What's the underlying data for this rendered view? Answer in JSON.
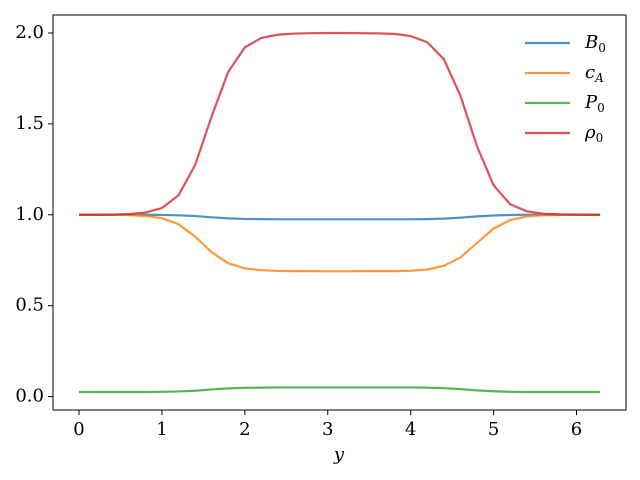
{
  "chart_data": {
    "type": "line",
    "xlabel": "y",
    "x": [
      0,
      0.2,
      0.4,
      0.6,
      0.8,
      1.0,
      1.2,
      1.4,
      1.6,
      1.8,
      2.0,
      2.2,
      2.4,
      2.6,
      2.8,
      3.0,
      3.2,
      3.4,
      3.6,
      3.8,
      4.0,
      4.2,
      4.4,
      4.6,
      4.8,
      5.0,
      5.2,
      5.4,
      5.6,
      5.8,
      6.0,
      6.2,
      6.283
    ],
    "series": [
      {
        "name": "B0",
        "color": "#1f77b4",
        "values": [
          1.0,
          1.0,
          1.0,
          1.0,
          1.0,
          0.999,
          0.997,
          0.993,
          0.986,
          0.98,
          0.977,
          0.976,
          0.975,
          0.975,
          0.975,
          0.975,
          0.975,
          0.975,
          0.975,
          0.975,
          0.975,
          0.976,
          0.979,
          0.984,
          0.991,
          0.996,
          0.999,
          1.0,
          1.0,
          1.0,
          1.0,
          1.0,
          1.0
        ]
      },
      {
        "name": "cA",
        "color": "#ff7f0e",
        "values": [
          1.0,
          1.0,
          1.0,
          0.998,
          0.994,
          0.981,
          0.948,
          0.88,
          0.794,
          0.733,
          0.705,
          0.695,
          0.691,
          0.69,
          0.69,
          0.689,
          0.689,
          0.69,
          0.69,
          0.69,
          0.692,
          0.699,
          0.719,
          0.765,
          0.845,
          0.924,
          0.971,
          0.991,
          0.997,
          0.999,
          1.0,
          1.0,
          1.0
        ]
      },
      {
        "name": "P0",
        "color": "#2ca02c",
        "values": [
          0.025,
          0.025,
          0.025,
          0.025,
          0.025,
          0.026,
          0.028,
          0.032,
          0.039,
          0.045,
          0.048,
          0.049,
          0.05,
          0.05,
          0.05,
          0.05,
          0.05,
          0.05,
          0.05,
          0.05,
          0.05,
          0.049,
          0.046,
          0.041,
          0.034,
          0.029,
          0.026,
          0.025,
          0.025,
          0.025,
          0.025,
          0.025,
          0.025
        ]
      },
      {
        "name": "ρ0",
        "color": "#d62728",
        "values": [
          1.0,
          1.0,
          1.001,
          1.004,
          1.012,
          1.037,
          1.107,
          1.274,
          1.542,
          1.787,
          1.921,
          1.973,
          1.991,
          1.997,
          1.999,
          2.0,
          2.0,
          1.999,
          1.998,
          1.995,
          1.983,
          1.949,
          1.856,
          1.655,
          1.377,
          1.162,
          1.058,
          1.019,
          1.006,
          1.002,
          1.001,
          1.0,
          1.0
        ]
      }
    ],
    "xlim": [
      -0.314,
      6.597
    ],
    "ylim": [
      -0.074,
      2.099
    ],
    "xticks": [
      0,
      1,
      2,
      3,
      4,
      5,
      6
    ],
    "yticks": [
      {
        "value": 0,
        "label": "0.0"
      },
      {
        "value": 0.5,
        "label": "0.5"
      },
      {
        "value": 1,
        "label": "1.0"
      },
      {
        "value": 1.5,
        "label": "1.5"
      },
      {
        "value": 2,
        "label": "2.0"
      }
    ],
    "legend": "upper right",
    "line_opacity": 0.8
  }
}
